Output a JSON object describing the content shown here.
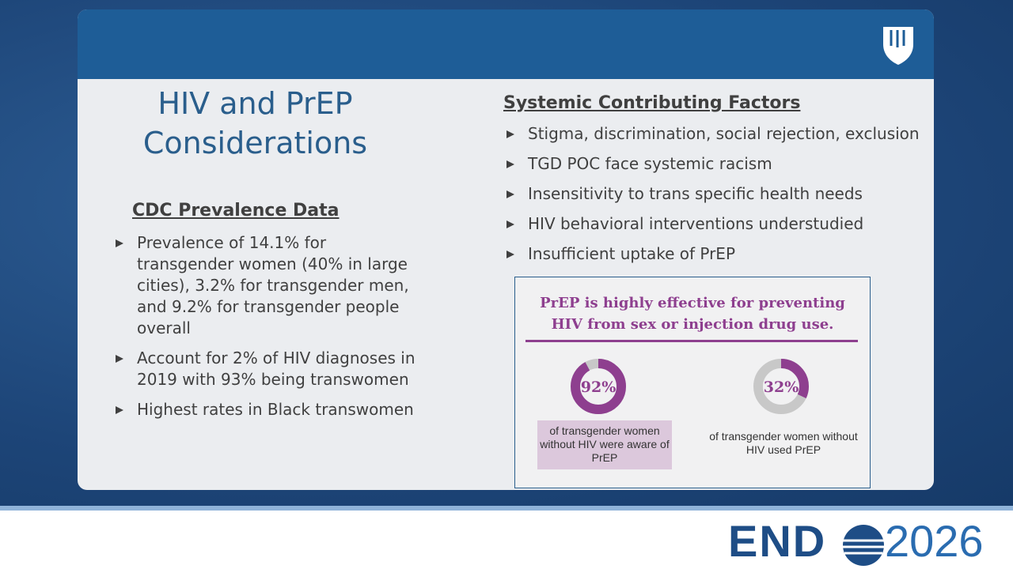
{
  "slide": {
    "title": "HIV and PrEP Considerations",
    "left": {
      "heading": "CDC Prevalence Data",
      "bullets": [
        "Prevalence of 14.1% for transgender women (40% in large cities), 3.2% for transgender men, and 9.2% for transgender people overall",
        "Account for 2% of HIV diagnoses in 2019 with 93% being transwomen",
        "Highest rates in Black transwomen"
      ]
    },
    "right": {
      "heading": "Systemic Contributing Factors",
      "bullets": [
        "Stigma, discrimination, social rejection, exclusion",
        "TGD POC face systemic racism",
        "Insensitivity to trans specific health needs",
        "HIV behavioral interventions understudied",
        "Insufficient uptake of PrEP"
      ]
    },
    "infographic": {
      "title": "PrEP is highly effective for preventing HIV from sex or injection drug use.",
      "stats": [
        {
          "value": 92,
          "label": "92%",
          "caption": "of transgender women without HIV were aware of PrEP"
        },
        {
          "value": 32,
          "label": "32%",
          "caption": "of transgender women without HIV used PrEP"
        }
      ]
    }
  },
  "footer": {
    "logo_left": "END",
    "logo_right": "2026"
  }
}
